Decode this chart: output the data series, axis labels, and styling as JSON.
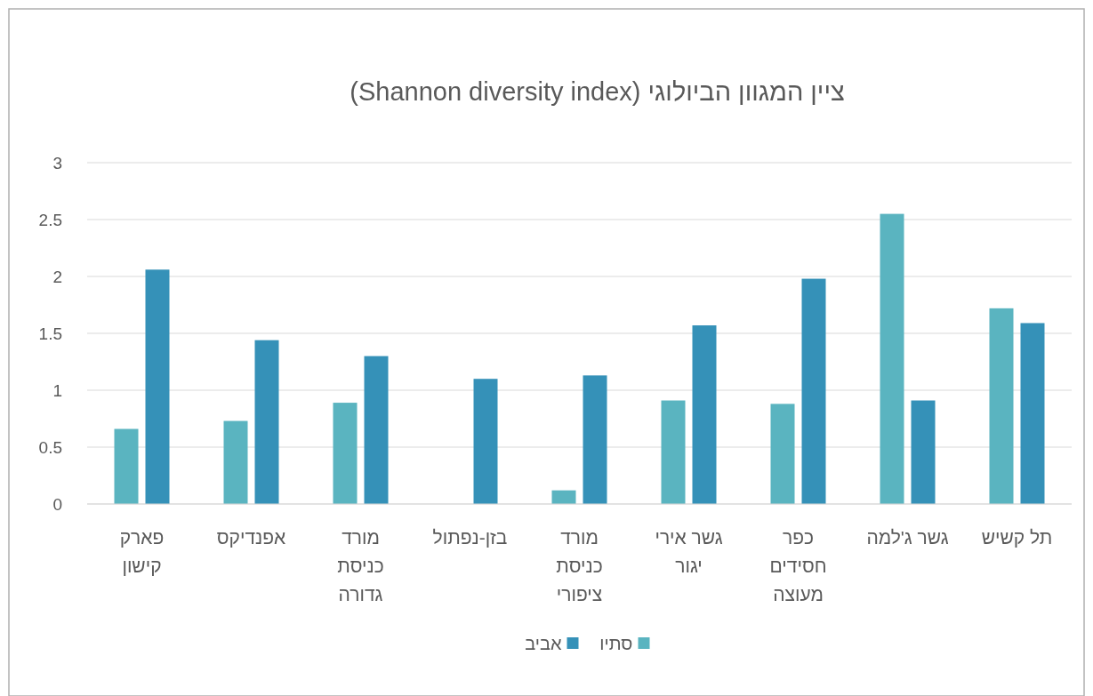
{
  "chart_data": {
    "type": "bar",
    "title": "ציין המגוון הביולוגי (Shannon diversity index)",
    "categories": [
      "פארק קישון",
      "אפנדיקס",
      "מורד כניסת גדורה",
      "בזן-נפתול",
      "מורד כניסת ציפורי",
      "גשר אירי יגור",
      "כפר חסידים מעוצה",
      "גשר ג'למה",
      "תל קשיש"
    ],
    "series": [
      {
        "name": "סתיו",
        "color": "#5ab4c0",
        "values": [
          0.66,
          0.73,
          0.89,
          null,
          0.12,
          0.91,
          0.88,
          2.55,
          1.72
        ]
      },
      {
        "name": "אביב",
        "color": "#3591b8",
        "values": [
          2.06,
          1.44,
          1.3,
          1.1,
          1.13,
          1.57,
          1.98,
          0.91,
          1.59
        ]
      }
    ],
    "ylim": [
      0,
      3
    ],
    "yticks": [
      0,
      0.5,
      1,
      1.5,
      2,
      2.5,
      3
    ],
    "grid": "y",
    "legend": "bottom"
  }
}
